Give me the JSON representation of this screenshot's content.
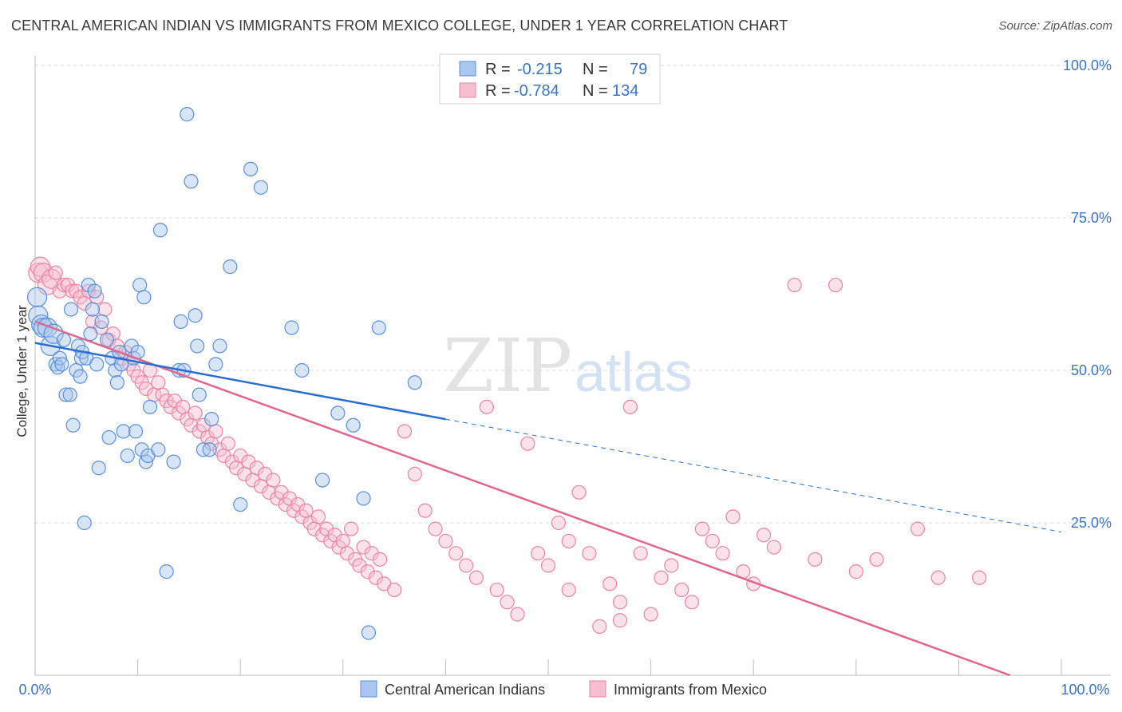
{
  "title": "CENTRAL AMERICAN INDIAN VS IMMIGRANTS FROM MEXICO COLLEGE, UNDER 1 YEAR CORRELATION CHART",
  "source": "Source: ZipAtlas.com",
  "watermark": {
    "zip": "ZIP",
    "atlas": "atlas"
  },
  "colors": {
    "blue_fill": "#a9c6ee",
    "blue_stroke": "#5b8fd6",
    "blue_line": "#2a6fd0",
    "pink_fill": "#f6bfd0",
    "pink_stroke": "#e982a6",
    "pink_line": "#e0668f",
    "axis_label": "#3b73c4",
    "grid": "#d9d9d9"
  },
  "legend_top": {
    "rows": [
      {
        "r_label": "R =",
        "r_value": "-0.215",
        "n_label": "N =",
        "n_value": "79"
      },
      {
        "r_label": "R =",
        "r_value": "-0.784",
        "n_label": "N =",
        "n_value": "134"
      }
    ]
  },
  "legend_bottom": [
    "Central American Indians",
    "Immigrants from Mexico"
  ],
  "chart_data": {
    "type": "scatter",
    "title": "CENTRAL AMERICAN INDIAN VS IMMIGRANTS FROM MEXICO COLLEGE, UNDER 1 YEAR CORRELATION CHART",
    "ylabel": "College, Under 1 year",
    "xlabel": "",
    "xlim": [
      0,
      100
    ],
    "ylim": [
      0,
      100
    ],
    "x_tick_labels": [
      "0.0%",
      "100.0%"
    ],
    "y_tick_labels": [
      "100.0%",
      "75.0%",
      "50.0%",
      "25.0%"
    ],
    "y_ticks": [
      100,
      75,
      50,
      25
    ],
    "grid": true,
    "series": [
      {
        "name": "Central American Indians",
        "r": -0.215,
        "n": 79,
        "trend": {
          "x0": 0,
          "y0": 54.5,
          "x1": 40,
          "y1": 42.0,
          "dash_to_x": 100,
          "dash_to_y": 23.5
        },
        "points": [
          [
            0.2,
            62
          ],
          [
            0.3,
            59
          ],
          [
            0.6,
            57.5
          ],
          [
            0.8,
            57
          ],
          [
            1.2,
            57
          ],
          [
            1.5,
            54
          ],
          [
            1.8,
            56
          ],
          [
            2,
            51
          ],
          [
            2.2,
            50.5
          ],
          [
            2.4,
            52
          ],
          [
            2.6,
            51
          ],
          [
            2.8,
            55
          ],
          [
            3,
            46
          ],
          [
            3.4,
            46
          ],
          [
            3.5,
            60
          ],
          [
            3.7,
            41
          ],
          [
            4,
            50
          ],
          [
            4.2,
            54
          ],
          [
            4.4,
            49
          ],
          [
            4.5,
            52
          ],
          [
            4.6,
            53
          ],
          [
            4.8,
            25
          ],
          [
            5,
            52
          ],
          [
            5.2,
            64
          ],
          [
            5.4,
            56
          ],
          [
            5.6,
            60
          ],
          [
            5.8,
            63
          ],
          [
            6,
            51
          ],
          [
            6.2,
            34
          ],
          [
            6.5,
            58
          ],
          [
            7,
            55
          ],
          [
            7.2,
            39
          ],
          [
            7.5,
            52
          ],
          [
            7.8,
            50
          ],
          [
            8,
            48
          ],
          [
            8.2,
            53
          ],
          [
            8.4,
            51
          ],
          [
            8.6,
            40
          ],
          [
            9,
            36
          ],
          [
            9.4,
            54
          ],
          [
            9.6,
            52
          ],
          [
            9.8,
            40
          ],
          [
            10,
            53
          ],
          [
            10.2,
            64
          ],
          [
            10.4,
            37
          ],
          [
            10.6,
            62
          ],
          [
            10.8,
            35
          ],
          [
            11,
            36
          ],
          [
            11.2,
            44
          ],
          [
            12,
            37
          ],
          [
            12.2,
            73
          ],
          [
            12.8,
            17
          ],
          [
            13.5,
            35
          ],
          [
            14,
            50
          ],
          [
            14.2,
            58
          ],
          [
            14.5,
            50
          ],
          [
            14.8,
            92
          ],
          [
            15.2,
            81
          ],
          [
            15.6,
            59
          ],
          [
            15.8,
            54
          ],
          [
            16,
            46
          ],
          [
            16.4,
            37
          ],
          [
            17,
            37
          ],
          [
            17.2,
            42
          ],
          [
            17.6,
            51
          ],
          [
            18,
            54
          ],
          [
            19,
            67
          ],
          [
            20,
            28
          ],
          [
            21,
            83
          ],
          [
            22,
            80
          ],
          [
            25,
            57
          ],
          [
            26,
            50
          ],
          [
            28,
            32
          ],
          [
            29.5,
            43
          ],
          [
            31,
            41
          ],
          [
            32,
            29
          ],
          [
            32.5,
            7
          ],
          [
            33.5,
            57
          ],
          [
            37,
            48
          ]
        ]
      },
      {
        "name": "Immigrants from Mexico",
        "r": -0.784,
        "n": 134,
        "trend": {
          "x0": 0,
          "y0": 58.0,
          "x1": 95,
          "y1": 0
        },
        "points": [
          [
            0.3,
            66
          ],
          [
            0.5,
            67
          ],
          [
            0.8,
            66
          ],
          [
            1.2,
            64
          ],
          [
            1.6,
            65
          ],
          [
            2,
            66
          ],
          [
            2.4,
            63
          ],
          [
            2.8,
            64
          ],
          [
            3.2,
            64
          ],
          [
            3.6,
            63
          ],
          [
            4,
            63
          ],
          [
            4.4,
            62
          ],
          [
            4.8,
            61
          ],
          [
            5.2,
            63
          ],
          [
            5.6,
            58
          ],
          [
            6,
            62
          ],
          [
            6.4,
            57
          ],
          [
            6.8,
            60
          ],
          [
            7.2,
            55
          ],
          [
            7.6,
            56
          ],
          [
            8,
            54
          ],
          [
            8.4,
            52
          ],
          [
            8.8,
            53
          ],
          [
            9.2,
            51
          ],
          [
            9.6,
            50
          ],
          [
            10,
            49
          ],
          [
            10.4,
            48
          ],
          [
            10.8,
            47
          ],
          [
            11.2,
            50
          ],
          [
            11.6,
            46
          ],
          [
            12,
            48
          ],
          [
            12.4,
            46
          ],
          [
            12.8,
            45
          ],
          [
            13.2,
            44
          ],
          [
            13.6,
            45
          ],
          [
            14,
            43
          ],
          [
            14.4,
            44
          ],
          [
            14.8,
            42
          ],
          [
            15.2,
            41
          ],
          [
            15.6,
            43
          ],
          [
            16,
            40
          ],
          [
            16.4,
            41
          ],
          [
            16.8,
            39
          ],
          [
            17.2,
            38
          ],
          [
            17.6,
            40
          ],
          [
            18,
            37
          ],
          [
            18.4,
            36
          ],
          [
            18.8,
            38
          ],
          [
            19.2,
            35
          ],
          [
            19.6,
            34
          ],
          [
            20,
            36
          ],
          [
            20.4,
            33
          ],
          [
            20.8,
            35
          ],
          [
            21.2,
            32
          ],
          [
            21.6,
            34
          ],
          [
            22,
            31
          ],
          [
            22.4,
            33
          ],
          [
            22.8,
            30
          ],
          [
            23.2,
            32
          ],
          [
            23.6,
            29
          ],
          [
            24,
            30
          ],
          [
            24.4,
            28
          ],
          [
            24.8,
            29
          ],
          [
            25.2,
            27
          ],
          [
            25.6,
            28
          ],
          [
            26,
            26
          ],
          [
            26.4,
            27
          ],
          [
            26.8,
            25
          ],
          [
            27.2,
            24
          ],
          [
            27.6,
            26
          ],
          [
            28,
            23
          ],
          [
            28.4,
            24
          ],
          [
            28.8,
            22
          ],
          [
            29.2,
            23
          ],
          [
            29.6,
            21
          ],
          [
            30,
            22
          ],
          [
            30.4,
            20
          ],
          [
            30.8,
            24
          ],
          [
            31.2,
            19
          ],
          [
            31.6,
            18
          ],
          [
            32,
            21
          ],
          [
            32.4,
            17
          ],
          [
            32.8,
            20
          ],
          [
            33.2,
            16
          ],
          [
            33.6,
            19
          ],
          [
            34,
            15
          ],
          [
            35,
            14
          ],
          [
            36,
            40
          ],
          [
            37,
            33
          ],
          [
            38,
            27
          ],
          [
            39,
            24
          ],
          [
            40,
            22
          ],
          [
            41,
            20
          ],
          [
            42,
            18
          ],
          [
            43,
            16
          ],
          [
            44,
            44
          ],
          [
            45,
            14
          ],
          [
            46,
            12
          ],
          [
            47,
            10
          ],
          [
            48,
            38
          ],
          [
            49,
            20
          ],
          [
            50,
            18
          ],
          [
            51,
            25
          ],
          [
            52,
            22
          ],
          [
            53,
            30
          ],
          [
            54,
            20
          ],
          [
            55,
            8
          ],
          [
            56,
            15
          ],
          [
            57,
            12
          ],
          [
            58,
            44
          ],
          [
            59,
            20
          ],
          [
            60,
            10
          ],
          [
            61,
            16
          ],
          [
            62,
            18
          ],
          [
            63,
            14
          ],
          [
            64,
            12
          ],
          [
            65,
            24
          ],
          [
            66,
            22
          ],
          [
            67,
            20
          ],
          [
            68,
            26
          ],
          [
            69,
            17
          ],
          [
            70,
            15
          ],
          [
            71,
            23
          ],
          [
            72,
            21
          ],
          [
            74,
            64
          ],
          [
            76,
            19
          ],
          [
            78,
            64
          ],
          [
            80,
            17
          ],
          [
            82,
            19
          ],
          [
            86,
            24
          ],
          [
            88,
            16
          ],
          [
            92,
            16
          ],
          [
            52,
            14
          ],
          [
            57,
            9
          ]
        ]
      }
    ]
  }
}
